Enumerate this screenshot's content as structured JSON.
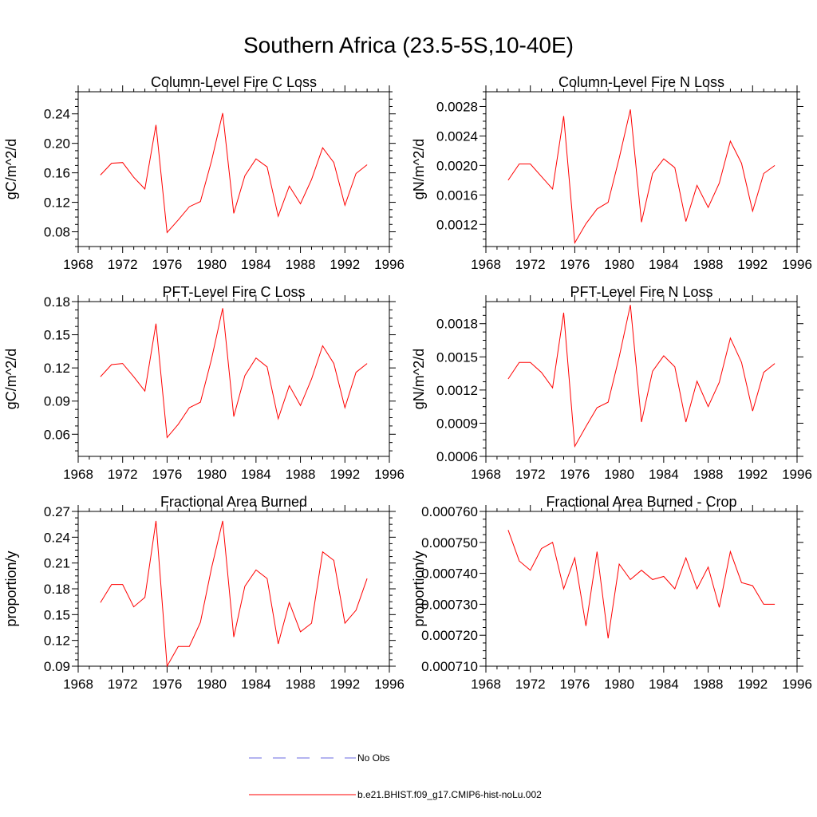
{
  "figure": {
    "title": "Southern Africa (23.5-5S,10-40E)"
  },
  "colors": {
    "model_line": "#ff0000",
    "obs_line": "#6a6ae0",
    "axes": "#000000"
  },
  "legend": {
    "entries": [
      {
        "name": "No Obs",
        "style": "dashed",
        "color": "#6a6ae0"
      },
      {
        "name": "b.e21.BHIST.f09_g17.CMIP6-hist-noLu.002",
        "style": "solid",
        "color": "#ff0000"
      }
    ],
    "placement": "bottom-center"
  },
  "chart_data": [
    {
      "type": "line",
      "title": "Column-Level Fire C Loss",
      "ylabel": "gC/m^2/d",
      "xlabel": "",
      "xlim": [
        1968,
        1996
      ],
      "ylim": [
        0.06,
        0.27
      ],
      "xticks": [
        1968,
        1972,
        1976,
        1980,
        1984,
        1988,
        1992,
        1996
      ],
      "yticks": [
        0.08,
        0.12,
        0.16,
        0.2,
        0.24
      ],
      "ytick_labels": [
        "0.08",
        "0.12",
        "0.16",
        "0.20",
        "0.24"
      ],
      "x": [
        1970,
        1971,
        1972,
        1973,
        1974,
        1975,
        1976,
        1977,
        1978,
        1979,
        1980,
        1981,
        1982,
        1983,
        1984,
        1985,
        1986,
        1987,
        1988,
        1989,
        1990,
        1991,
        1992,
        1993,
        1994
      ],
      "series": [
        {
          "name": "b.e21.BHIST.f09_g17.CMIP6-hist-noLu.002",
          "values": [
            0.157,
            0.173,
            0.174,
            0.154,
            0.138,
            0.225,
            0.079,
            0.096,
            0.114,
            0.121,
            0.176,
            0.241,
            0.105,
            0.156,
            0.179,
            0.168,
            0.101,
            0.142,
            0.118,
            0.151,
            0.194,
            0.174,
            0.116,
            0.159,
            0.171
          ]
        }
      ]
    },
    {
      "type": "line",
      "title": "Column-Level Fire N Loss",
      "ylabel": "gN/m^2/d",
      "xlabel": "",
      "xlim": [
        1968,
        1996
      ],
      "ylim": [
        0.0009,
        0.003
      ],
      "xticks": [
        1968,
        1972,
        1976,
        1980,
        1984,
        1988,
        1992,
        1996
      ],
      "yticks": [
        0.0012,
        0.0016,
        0.002,
        0.0024,
        0.0028
      ],
      "ytick_labels": [
        "0.0012",
        "0.0016",
        "0.0020",
        "0.0024",
        "0.0028"
      ],
      "x": [
        1970,
        1971,
        1972,
        1973,
        1974,
        1975,
        1976,
        1977,
        1978,
        1979,
        1980,
        1981,
        1982,
        1983,
        1984,
        1985,
        1986,
        1987,
        1988,
        1989,
        1990,
        1991,
        1992,
        1993,
        1994
      ],
      "series": [
        {
          "name": "b.e21.BHIST.f09_g17.CMIP6-hist-noLu.002",
          "values": [
            0.0018,
            0.00202,
            0.00202,
            0.00185,
            0.00168,
            0.00267,
            0.00095,
            0.00121,
            0.00141,
            0.0015,
            0.0021,
            0.00276,
            0.00123,
            0.00189,
            0.00209,
            0.00197,
            0.00124,
            0.00173,
            0.00143,
            0.00176,
            0.00233,
            0.00203,
            0.00138,
            0.00189,
            0.002
          ]
        }
      ]
    },
    {
      "type": "line",
      "title": "PFT-Level Fire C Loss",
      "ylabel": "gC/m^2/d",
      "xlabel": "",
      "xlim": [
        1968,
        1996
      ],
      "ylim": [
        0.04,
        0.18
      ],
      "xticks": [
        1968,
        1972,
        1976,
        1980,
        1984,
        1988,
        1992,
        1996
      ],
      "yticks": [
        0.06,
        0.09,
        0.12,
        0.15,
        0.18
      ],
      "ytick_labels": [
        "0.06",
        "0.09",
        "0.12",
        "0.15",
        "0.18"
      ],
      "x": [
        1970,
        1971,
        1972,
        1973,
        1974,
        1975,
        1976,
        1977,
        1978,
        1979,
        1980,
        1981,
        1982,
        1983,
        1984,
        1985,
        1986,
        1987,
        1988,
        1989,
        1990,
        1991,
        1992,
        1993,
        1994
      ],
      "series": [
        {
          "name": "b.e21.BHIST.f09_g17.CMIP6-hist-noLu.002",
          "values": [
            0.112,
            0.123,
            0.124,
            0.112,
            0.099,
            0.16,
            0.057,
            0.069,
            0.084,
            0.089,
            0.128,
            0.174,
            0.076,
            0.113,
            0.129,
            0.121,
            0.074,
            0.104,
            0.086,
            0.11,
            0.14,
            0.124,
            0.084,
            0.116,
            0.124
          ]
        }
      ]
    },
    {
      "type": "line",
      "title": "PFT-Level Fire N Loss",
      "ylabel": "gN/m^2/d",
      "xlabel": "",
      "xlim": [
        1968,
        1996
      ],
      "ylim": [
        0.0006,
        0.002
      ],
      "xticks": [
        1968,
        1972,
        1976,
        1980,
        1984,
        1988,
        1992,
        1996
      ],
      "yticks": [
        0.0006,
        0.0009,
        0.0012,
        0.0015,
        0.0018
      ],
      "ytick_labels": [
        "0.0006",
        "0.0009",
        "0.0012",
        "0.0015",
        "0.0018"
      ],
      "x": [
        1970,
        1971,
        1972,
        1973,
        1974,
        1975,
        1976,
        1977,
        1978,
        1979,
        1980,
        1981,
        1982,
        1983,
        1984,
        1985,
        1986,
        1987,
        1988,
        1989,
        1990,
        1991,
        1992,
        1993,
        1994
      ],
      "series": [
        {
          "name": "b.e21.BHIST.f09_g17.CMIP6-hist-noLu.002",
          "values": [
            0.0013,
            0.00145,
            0.00145,
            0.00136,
            0.00122,
            0.0019,
            0.00069,
            0.00087,
            0.00104,
            0.00109,
            0.0015,
            0.00197,
            0.00091,
            0.00137,
            0.00151,
            0.00141,
            0.00091,
            0.00128,
            0.00105,
            0.00127,
            0.00167,
            0.00145,
            0.00101,
            0.00136,
            0.00144
          ]
        }
      ]
    },
    {
      "type": "line",
      "title": "Fractional Area Burned",
      "ylabel": "proportion/y",
      "xlabel": "",
      "xlim": [
        1968,
        1996
      ],
      "ylim": [
        0.09,
        0.27
      ],
      "xticks": [
        1968,
        1972,
        1976,
        1980,
        1984,
        1988,
        1992,
        1996
      ],
      "yticks": [
        0.09,
        0.12,
        0.15,
        0.18,
        0.21,
        0.24,
        0.27
      ],
      "ytick_labels": [
        "0.09",
        "0.12",
        "0.15",
        "0.18",
        "0.21",
        "0.24",
        "0.27"
      ],
      "x": [
        1970,
        1971,
        1972,
        1973,
        1974,
        1975,
        1976,
        1977,
        1978,
        1979,
        1980,
        1981,
        1982,
        1983,
        1984,
        1985,
        1986,
        1987,
        1988,
        1989,
        1990,
        1991,
        1992,
        1993,
        1994
      ],
      "series": [
        {
          "name": "b.e21.BHIST.f09_g17.CMIP6-hist-noLu.002",
          "values": [
            0.164,
            0.185,
            0.185,
            0.159,
            0.17,
            0.259,
            0.09,
            0.113,
            0.113,
            0.141,
            0.204,
            0.259,
            0.124,
            0.183,
            0.202,
            0.192,
            0.116,
            0.164,
            0.13,
            0.14,
            0.223,
            0.213,
            0.14,
            0.155,
            0.192
          ]
        }
      ]
    },
    {
      "type": "line",
      "title": "Fractional Area Burned - Crop",
      "ylabel": "proportion/y",
      "xlabel": "",
      "xlim": [
        1968,
        1996
      ],
      "ylim": [
        0.00071,
        0.00076
      ],
      "xticks": [
        1968,
        1972,
        1976,
        1980,
        1984,
        1988,
        1992,
        1996
      ],
      "yticks": [
        0.00071,
        0.00072,
        0.00073,
        0.00074,
        0.00075,
        0.00076
      ],
      "ytick_labels": [
        "0.000710",
        "0.000720",
        "0.000730",
        "0.000740",
        "0.000750",
        "0.000760"
      ],
      "x": [
        1970,
        1971,
        1972,
        1973,
        1974,
        1975,
        1976,
        1977,
        1978,
        1979,
        1980,
        1981,
        1982,
        1983,
        1984,
        1985,
        1986,
        1987,
        1988,
        1989,
        1990,
        1991,
        1992,
        1993,
        1994
      ],
      "series": [
        {
          "name": "b.e21.BHIST.f09_g17.CMIP6-hist-noLu.002",
          "values": [
            0.000754,
            0.000744,
            0.000741,
            0.000748,
            0.00075,
            0.000735,
            0.000745,
            0.000723,
            0.000747,
            0.000719,
            0.000743,
            0.000738,
            0.000741,
            0.000738,
            0.000739,
            0.000735,
            0.000745,
            0.000735,
            0.000742,
            0.000729,
            0.000747,
            0.000737,
            0.000736,
            0.00073,
            0.00073
          ]
        }
      ]
    }
  ]
}
